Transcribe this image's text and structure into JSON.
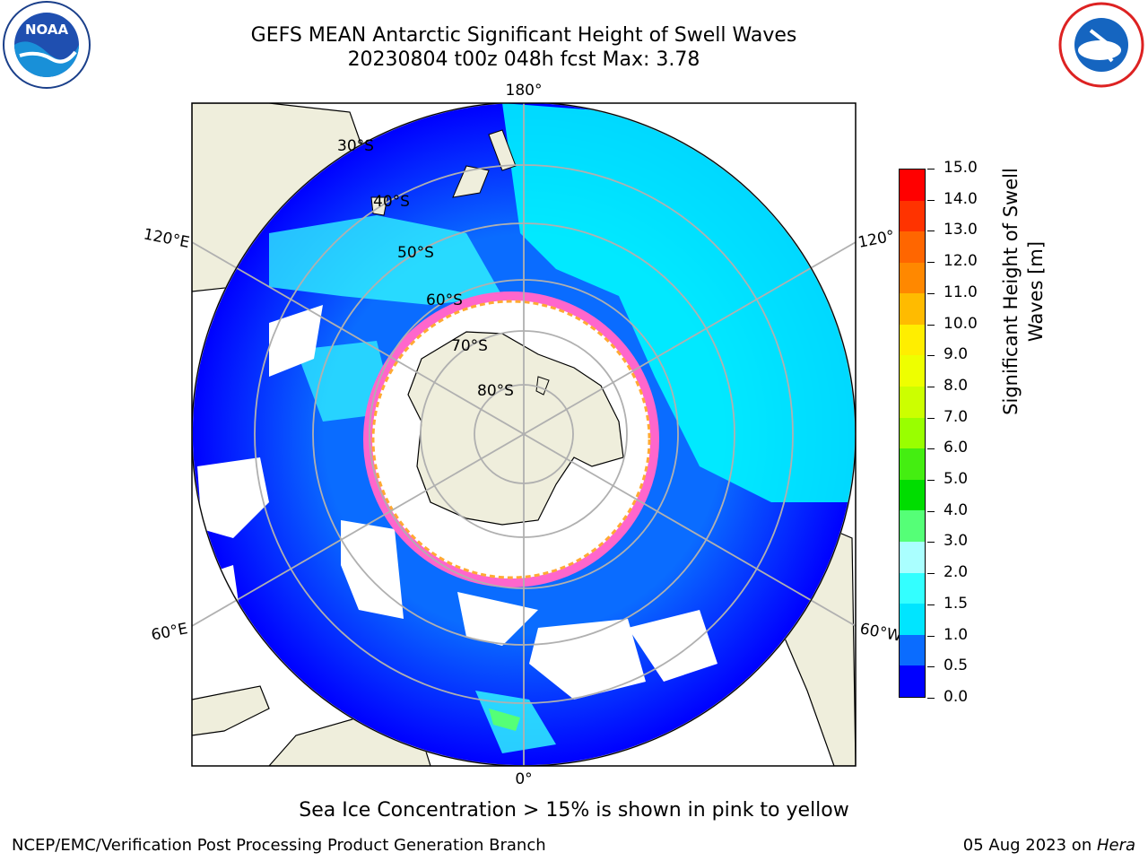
{
  "title": {
    "line1": "GEFS MEAN Antarctic Significant Height of Swell Waves",
    "line2": "20230804 t00z 048h fcst   Max: 3.78"
  },
  "logos": {
    "left": "NOAA",
    "right": "NATIONAL WEATHER SERVICE"
  },
  "map": {
    "projection": "south polar stereographic",
    "meridian_labels": {
      "top": "180°",
      "bottom": "0°",
      "left_upper": "120°E",
      "left_lower": "60°E",
      "right_upper": "120°",
      "right_lower": "60°W"
    },
    "parallel_labels": [
      "30°S",
      "40°S",
      "50°S",
      "60°S",
      "70°S",
      "80°S"
    ],
    "colors": {
      "land": "#efeedc",
      "ocean_low": "#0000ff",
      "ocean_mid": "#0a6cff",
      "ocean_high": "#00ffff",
      "ice_no_data": "#ffffff",
      "ice_edge_pink": "#ff66cc",
      "ice_edge_orange": "#ffaa33",
      "grid": "#b0b0b0"
    }
  },
  "colorbar": {
    "title_line1": "Significant Height of Swell",
    "title_line2": "Waves [m]",
    "ticks": [
      "0.0",
      "0.5",
      "1.0",
      "1.5",
      "2.0",
      "3.0",
      "4.0",
      "5.0",
      "6.0",
      "7.0",
      "8.0",
      "9.0",
      "10.0",
      "11.0",
      "12.0",
      "13.0",
      "14.0",
      "15.0"
    ],
    "colors": [
      "#0000ff",
      "#0a6cff",
      "#00e5ff",
      "#33ffff",
      "#aaffff",
      "#55ff77",
      "#00dd00",
      "#44ee11",
      "#99ff00",
      "#ccff00",
      "#eeff00",
      "#ffee00",
      "#ffbb00",
      "#ff8800",
      "#ff6600",
      "#ff3300",
      "#ff0000"
    ]
  },
  "note": "Sea Ice Concentration > 15% is shown in pink to yellow",
  "footer": {
    "credit": "NCEP/EMC/Verification Post Processing Product Generation Branch",
    "date": "05 Aug 2023 on ",
    "machine": "Hera"
  }
}
